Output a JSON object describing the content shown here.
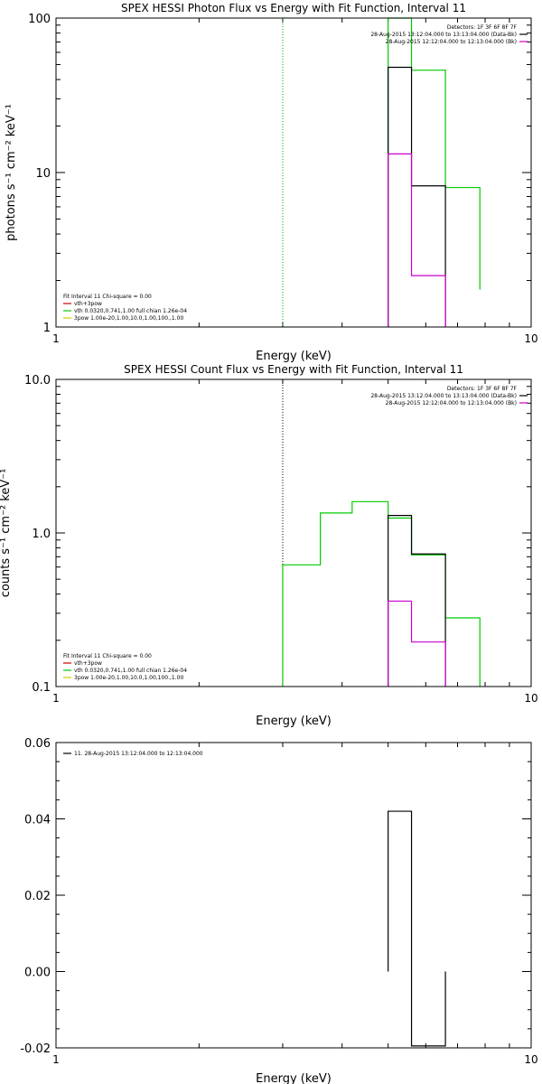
{
  "chart_data": [
    {
      "type": "line",
      "title": "SPEX HESSI Photon Flux vs Energy with Fit Function, Interval 11",
      "xlabel": "Energy (keV)",
      "ylabel": "photons s⁻¹ cm⁻² keV⁻¹",
      "xscale": "log",
      "yscale": "log",
      "xlim": [
        1,
        10
      ],
      "ylim": [
        1,
        100
      ],
      "xticks": [
        {
          "v": 1,
          "label": "1"
        },
        {
          "v": 10,
          "label": "10"
        }
      ],
      "yticks": [
        {
          "v": 1,
          "label": "1"
        },
        {
          "v": 10,
          "label": "10"
        },
        {
          "v": 100,
          "label": "100"
        }
      ],
      "vline": 3,
      "legend_right": [
        {
          "text": "Detectors: 1F 3F 6F 8F 7F",
          "color": ""
        },
        {
          "text": "28-Aug-2015 13:12:04.000 to 13:13:04.000 (Data-Bk)",
          "color": "#000000"
        },
        {
          "text": "28-Aug-2015 12:12:04.000 to 12:13:04.000 (Bk)",
          "color": "#cc00cc"
        }
      ],
      "legend_left": [
        {
          "text": "Fit Interval 11    Chi-square = 0.00",
          "color": ""
        },
        {
          "text": "vth+3pow",
          "color": "#cc0000"
        },
        {
          "text": "vth 0.0320,0.741,1.00   full chian 1.26e-04",
          "color": "#00cc00"
        },
        {
          "text": "3pow 1.00e-20,1.00,10.0,1.00,100.,1.00",
          "color": "#cccc00"
        }
      ],
      "series": [
        {
          "color": "#00cc00",
          "edges": [
            5,
            5.6,
            6.6,
            7.8
          ],
          "values": [
            100,
            46,
            8,
            1.75
          ]
        },
        {
          "color": "#000000",
          "edges": [
            5,
            5.6,
            6.6
          ],
          "values": [
            48,
            8.2
          ]
        },
        {
          "color": "#cc00cc",
          "edges": [
            5,
            5.6,
            6.6
          ],
          "values": [
            13.2,
            2.15
          ]
        }
      ]
    },
    {
      "type": "line",
      "title": "SPEX HESSI Count Flux vs Energy with Fit Function, Interval 11",
      "xlabel": "Energy (keV)",
      "ylabel": "counts s⁻¹ cm⁻² keV⁻¹",
      "xscale": "log",
      "yscale": "log",
      "xlim": [
        1,
        10
      ],
      "ylim": [
        0.1,
        10
      ],
      "xticks": [
        {
          "v": 1,
          "label": "1"
        },
        {
          "v": 10,
          "label": "10"
        }
      ],
      "yticks": [
        {
          "v": 0.1,
          "label": "0.1"
        },
        {
          "v": 1,
          "label": "1.0"
        },
        {
          "v": 10,
          "label": "10.0"
        }
      ],
      "vline": 3,
      "legend_right": [
        {
          "text": "Detectors: 1F 3F 6F 8F 7F",
          "color": ""
        },
        {
          "text": "28-Aug-2015 13:12:04.000 to 13:13:04.000 (Data-Bk)",
          "color": "#000000"
        },
        {
          "text": "28-Aug-2015 12:12:04.000 to 12:13:04.000 (Bk)",
          "color": "#cc00cc"
        }
      ],
      "legend_left": [
        {
          "text": "Fit Interval 11    Chi-square = 0.00",
          "color": ""
        },
        {
          "text": "vth+3pow",
          "color": "#cc0000"
        },
        {
          "text": "vth 0.0320,0.741,1.00   full chian 1.26e-04",
          "color": "#00cc00"
        },
        {
          "text": "3pow 1.00e-20,1.00,10.0,1.00,100.,1.00",
          "color": "#cccc00"
        }
      ],
      "series": [
        {
          "color": "#00cc00",
          "edges": [
            3,
            3.6,
            4.2,
            5,
            5.6,
            6.6,
            7.8
          ],
          "values": [
            0.62,
            1.35,
            1.6,
            1.25,
            0.72,
            0.28
          ]
        },
        {
          "color": "#000000",
          "edges": [
            5,
            5.6,
            6.6
          ],
          "values": [
            1.3,
            0.73
          ]
        },
        {
          "color": "#cc00cc",
          "edges": [
            5,
            5.6,
            6.6
          ],
          "values": [
            0.36,
            0.195
          ]
        }
      ]
    },
    {
      "type": "bar",
      "title": "",
      "xlabel": "Energy (keV)",
      "ylabel": "",
      "xscale": "log",
      "yscale": "linear",
      "xlim": [
        1,
        10
      ],
      "ylim": [
        -0.02,
        0.06
      ],
      "xticks": [
        {
          "v": 1,
          "label": "1"
        },
        {
          "v": 10,
          "label": "10"
        }
      ],
      "yticks": [
        {
          "v": -0.02,
          "label": "-0.02"
        },
        {
          "v": 0,
          "label": "0.00"
        },
        {
          "v": 0.02,
          "label": "0.02"
        },
        {
          "v": 0.04,
          "label": "0.04"
        },
        {
          "v": 0.06,
          "label": "0.06"
        }
      ],
      "legend_left": [
        {
          "text": "11. 28-Aug-2015 13:12:04.000 to 12:13:04.000",
          "color": "#000000"
        }
      ],
      "series": [
        {
          "color": "#000000",
          "edges": [
            5,
            5.6,
            6.6
          ],
          "values": [
            0.042,
            -0.0195
          ]
        }
      ]
    }
  ]
}
